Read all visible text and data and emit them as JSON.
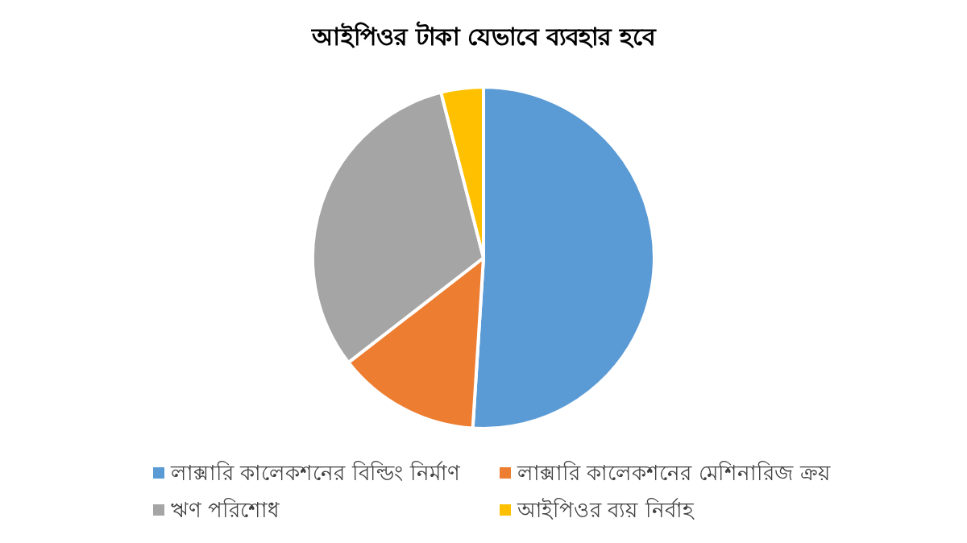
{
  "chart_data": {
    "type": "pie",
    "title": "আইপিওর টাকা যেভাবে ব্যবহার হবে",
    "categories": [
      "লাক্সারি কালেকশনের বিল্ডিং নির্মাণ",
      "লাক্সারি কালেকশনের মেশিনারিজ ক্রয়",
      "ঋণ পরিশোধ",
      "আইপিওর ব্যয় নির্বাহ"
    ],
    "values": [
      51,
      13.5,
      31.5,
      4
    ],
    "colors": [
      "#5b9bd5",
      "#ed7d31",
      "#a5a5a5",
      "#ffc000"
    ],
    "legend": "bottom"
  }
}
